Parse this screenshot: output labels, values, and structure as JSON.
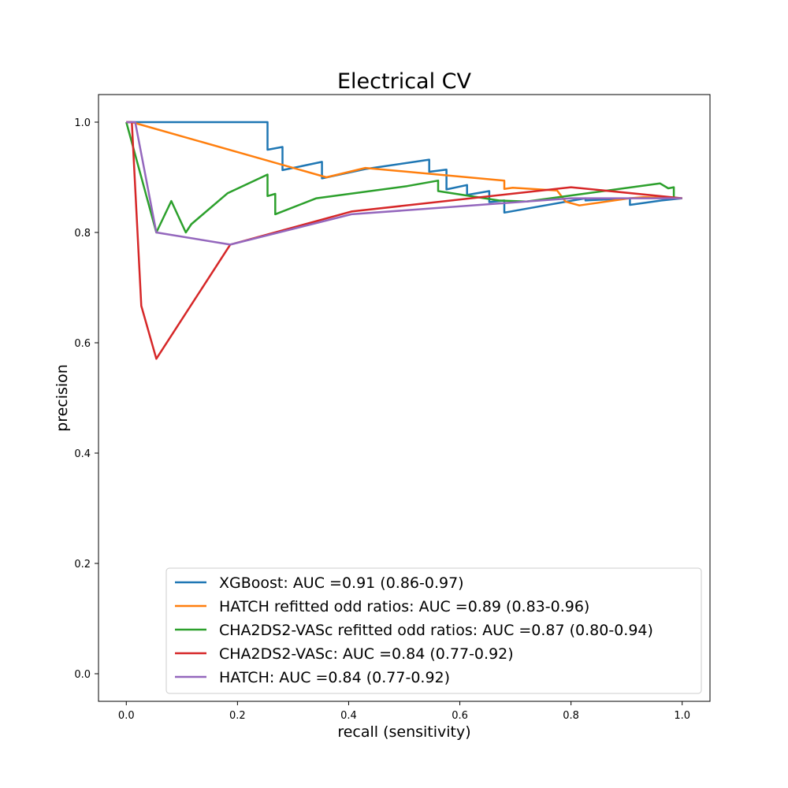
{
  "chart_data": {
    "type": "line",
    "title": "Electrical CV",
    "xlabel": "recall (sensitivity)",
    "ylabel": "precision",
    "xlim": [
      -0.05,
      1.05
    ],
    "ylim": [
      -0.05,
      1.05
    ],
    "xticks": [
      "0.0",
      "0.2",
      "0.4",
      "0.6",
      "0.8",
      "1.0"
    ],
    "yticks": [
      "0.0",
      "0.2",
      "0.4",
      "0.6",
      "0.8",
      "1.0"
    ],
    "grid": false,
    "legend_position": "lower-right",
    "series": [
      {
        "name": "XGBoost: AUC =0.91 (0.86-0.97)",
        "color": "#1f77b4",
        "x": [
          0,
          0.01,
          0.254,
          0.254,
          0.281,
          0.281,
          0.352,
          0.352,
          0.43,
          0.545,
          0.545,
          0.576,
          0.576,
          0.613,
          0.613,
          0.653,
          0.653,
          0.68,
          0.68,
          0.68,
          0.826,
          0.826,
          0.906,
          0.906,
          0.963,
          1.0
        ],
        "y": [
          1.0,
          1.0,
          1.0,
          0.95,
          0.955,
          0.913,
          0.928,
          0.898,
          0.915,
          0.932,
          0.91,
          0.914,
          0.878,
          0.886,
          0.868,
          0.875,
          0.855,
          0.858,
          0.85,
          0.836,
          0.862,
          0.858,
          0.862,
          0.85,
          0.858,
          0.862
        ]
      },
      {
        "name": "HATCH refitted odd ratios: AUC =0.89 (0.83-0.96)",
        "color": "#ff7f0e",
        "x": [
          0,
          0.01,
          0.36,
          0.43,
          0.68,
          0.68,
          0.695,
          0.775,
          0.79,
          0.815,
          0.905,
          0.93,
          1.0
        ],
        "y": [
          1.0,
          1.0,
          0.9,
          0.917,
          0.894,
          0.879,
          0.881,
          0.876,
          0.856,
          0.849,
          0.862,
          0.864,
          0.862
        ]
      },
      {
        "name": "CHA2DS2-VASc refitted odd ratios: AUC =0.87 (0.80-0.94)",
        "color": "#2ca02c",
        "x": [
          0,
          0.054,
          0.081,
          0.107,
          0.117,
          0.182,
          0.254,
          0.254,
          0.268,
          0.268,
          0.342,
          0.505,
          0.561,
          0.561,
          0.67,
          0.72,
          0.96,
          0.975,
          0.985,
          0.985,
          1.0
        ],
        "y": [
          1.0,
          0.8,
          0.857,
          0.8,
          0.815,
          0.871,
          0.905,
          0.866,
          0.87,
          0.833,
          0.862,
          0.884,
          0.894,
          0.875,
          0.858,
          0.856,
          0.889,
          0.88,
          0.882,
          0.862,
          0.862
        ]
      },
      {
        "name": "CHA2DS2-VASc: AUC =0.84 (0.77-0.92)",
        "color": "#d62728",
        "x": [
          0,
          0.01,
          0.027,
          0.054,
          0.187,
          0.405,
          0.8,
          1.0
        ],
        "y": [
          1.0,
          1.0,
          0.667,
          0.571,
          0.778,
          0.838,
          0.882,
          0.862
        ]
      },
      {
        "name": "HATCH: AUC =0.84 (0.77-0.92)",
        "color": "#9467bd",
        "x": [
          0,
          0.016,
          0.054,
          0.187,
          0.405,
          0.8,
          0.93,
          1.0
        ],
        "y": [
          1.0,
          1.0,
          0.8,
          0.778,
          0.833,
          0.862,
          0.862,
          0.862
        ]
      }
    ]
  }
}
